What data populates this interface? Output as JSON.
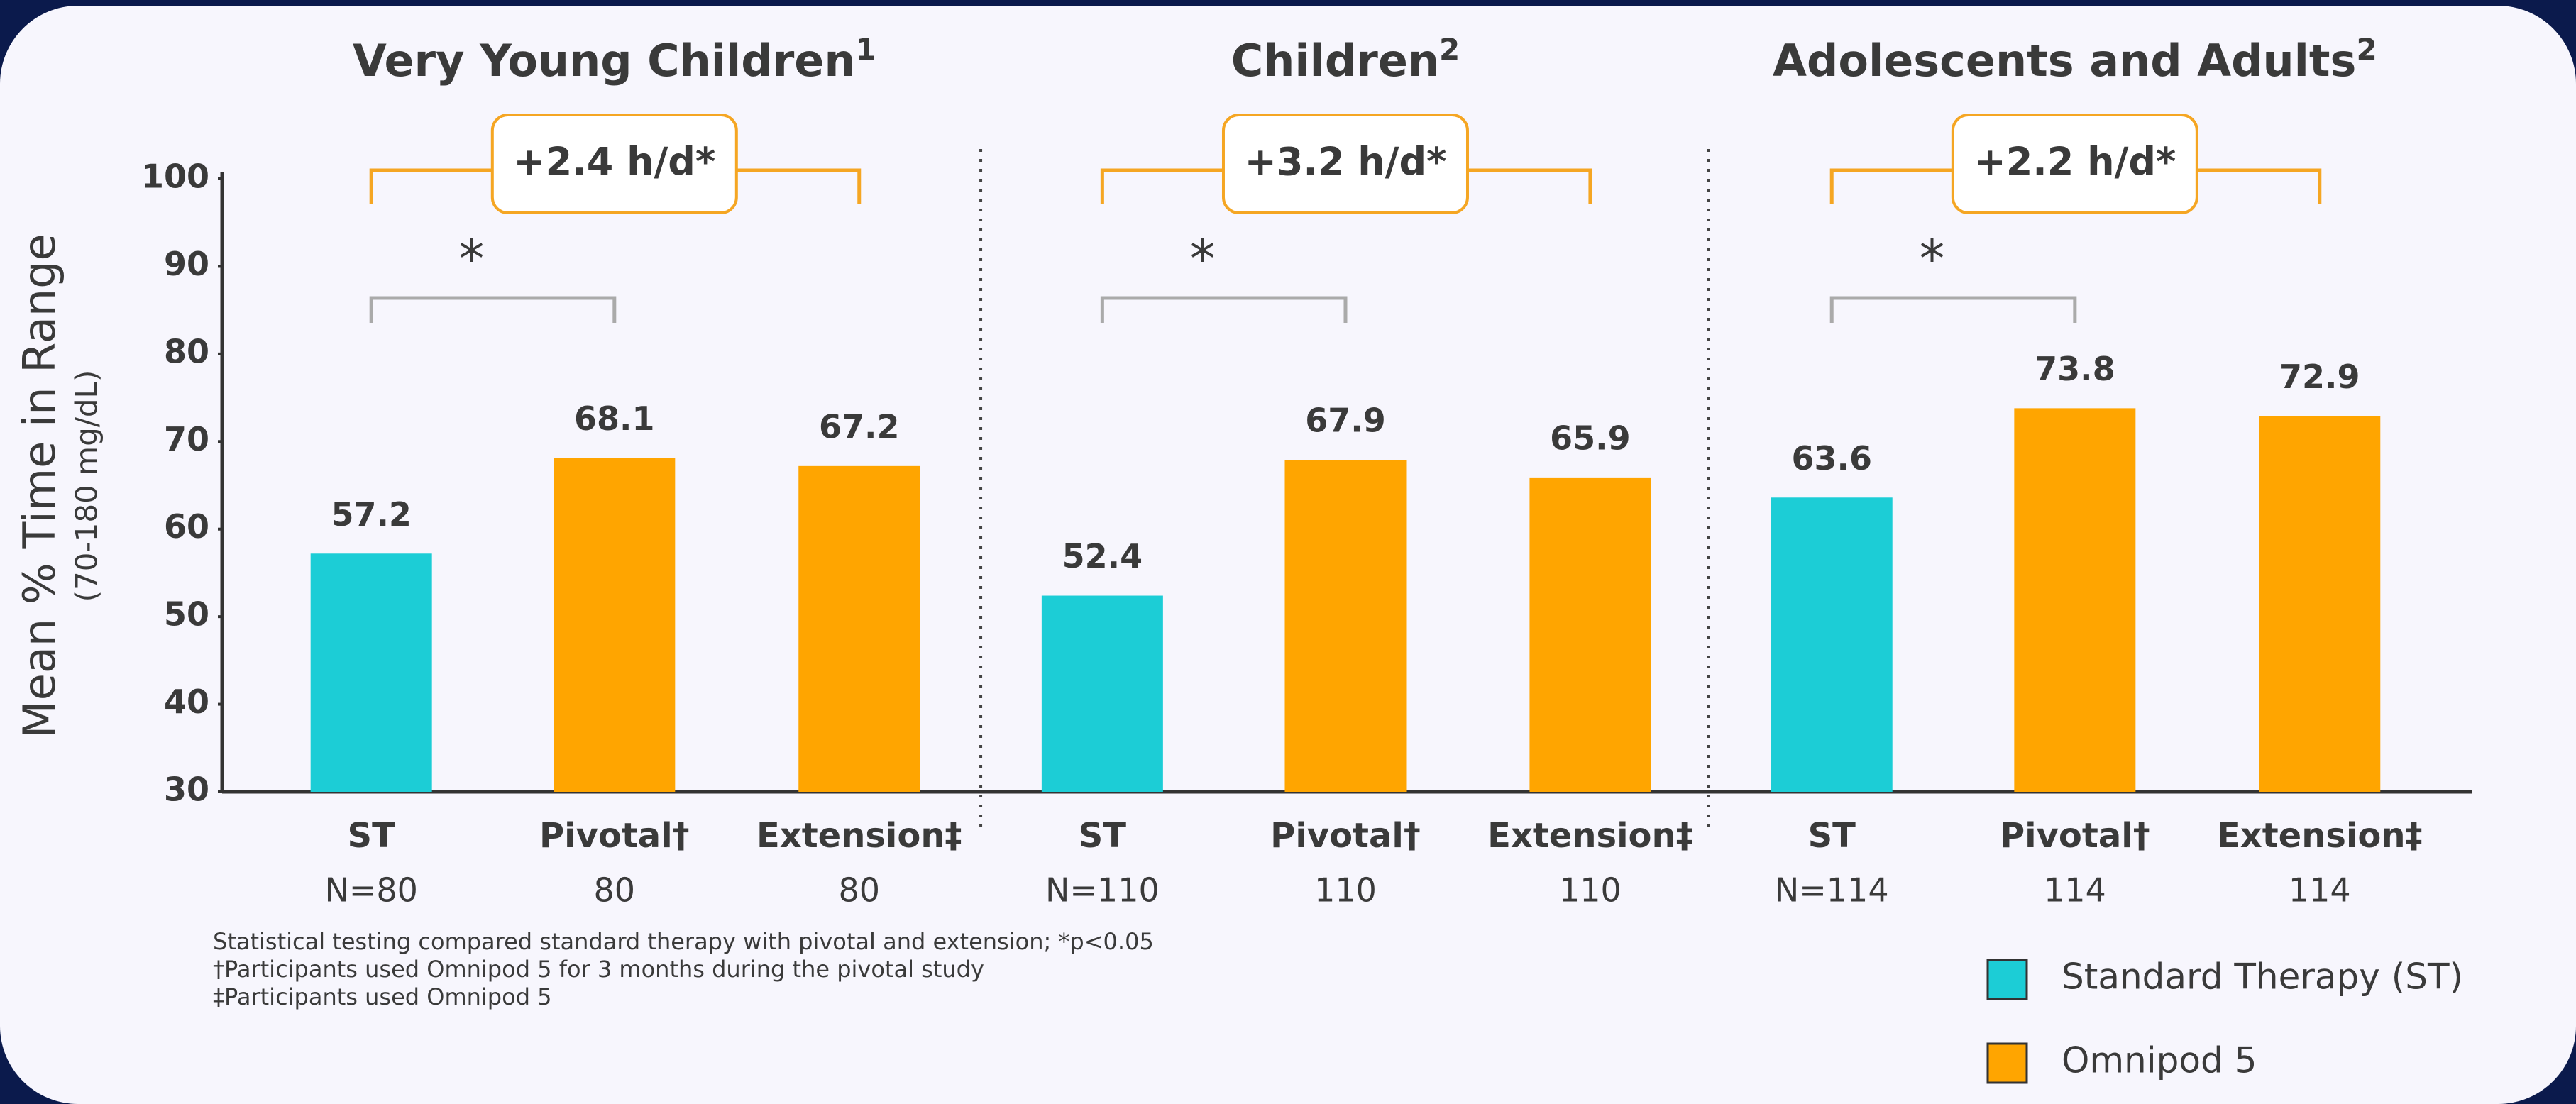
{
  "chart_data": {
    "type": "bar",
    "y_label": "Mean % Time in Range",
    "y_sublabel": "(70-180 mg/dL)",
    "ylim": [
      30,
      100
    ],
    "yticks": [
      30,
      40,
      50,
      60,
      70,
      80,
      90,
      100
    ],
    "categories": [
      "ST",
      "Pivotal†",
      "Extension‡",
      "ST",
      "Pivotal†",
      "Extension‡",
      "ST",
      "Pivotal†",
      "Extension‡"
    ],
    "n_labels": [
      "N=80",
      "80",
      "80",
      "N=110",
      "110",
      "110",
      "N=114",
      "114",
      "114"
    ],
    "groups": [
      {
        "title": "Very Young Children",
        "superscript": "1",
        "annotation": "+2.4 h/d*",
        "significance": "*"
      },
      {
        "title": "Children",
        "superscript": "2",
        "annotation": "+3.2 h/d*",
        "significance": "*"
      },
      {
        "title": "Adolescents and Adults",
        "superscript": "2",
        "annotation": "+2.2 h/d*",
        "significance": "*"
      }
    ],
    "series": [
      {
        "name": "Standard Therapy (ST)",
        "color": "#1ccdd6",
        "values": [
          57.2,
          null,
          null,
          52.4,
          null,
          null,
          63.6,
          null,
          null
        ]
      },
      {
        "name": "Omnipod 5",
        "color": "#ffa500",
        "values": [
          null,
          68.1,
          67.2,
          null,
          67.9,
          65.9,
          null,
          73.8,
          72.9
        ]
      }
    ],
    "footnotes": [
      "Statistical testing compared standard therapy with pivotal and extension; *p<0.05",
      "†Participants used Omnipod 5 for 3 months during the pivotal study",
      "‡Participants used Omnipod 5"
    ]
  }
}
